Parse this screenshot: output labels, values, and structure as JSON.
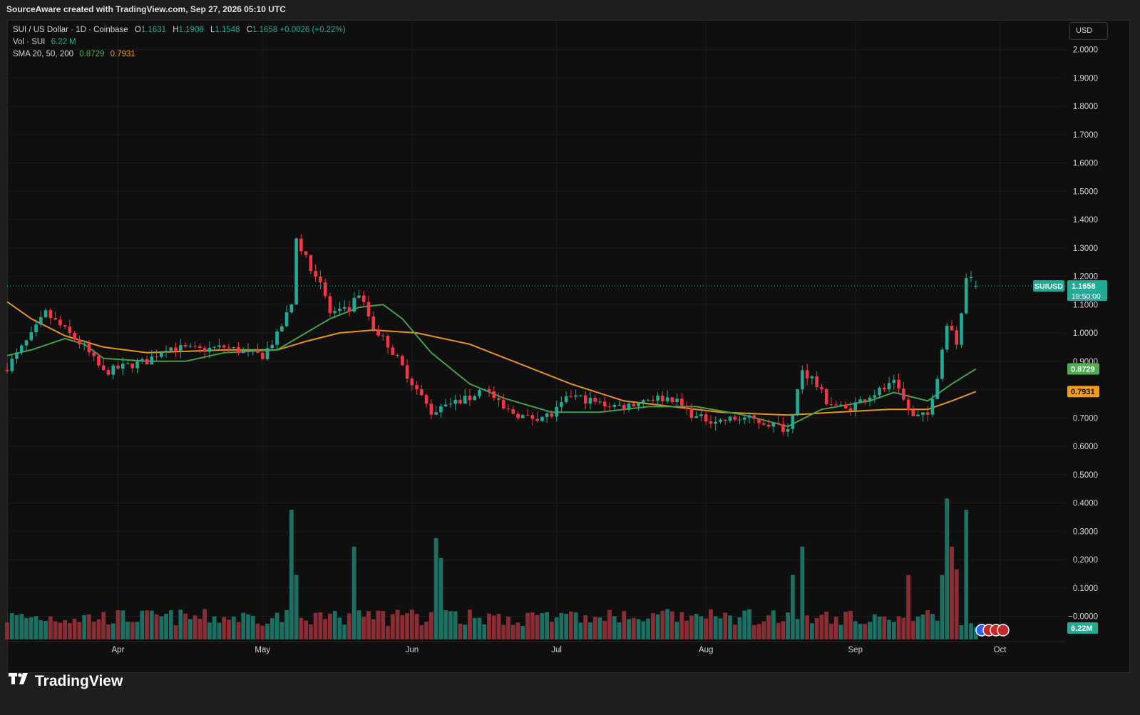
{
  "header": {
    "attribution": "SourceAware created with TradingView.com, Sep 27, 2026 05:10 UTC"
  },
  "legend": {
    "symbol_line": "SUI / US Dollar · 1D · Coinbase",
    "open_label": "O",
    "open": "1.1631",
    "high_label": "H",
    "high": "1.1908",
    "low_label": "L",
    "low": "1.1548",
    "close_label": "C",
    "close": "1.1658",
    "change": "+0.0026 (+0.22%)",
    "vol_label": "Vol · SUI",
    "vol_value": "6.22 M",
    "sma_label": "SMA 20, 50, 200",
    "sma20_value": "0.8729",
    "sma50_value": "0.7931"
  },
  "currency_button": "USD",
  "footer_brand": "TradingView",
  "colors": {
    "up": "#22ab94",
    "down": "#f23645",
    "up_volume": "#1c6f63",
    "down_volume": "#8a2e35",
    "sma20": "#43a047",
    "sma50": "#e6931f",
    "background": "#0f0f0f",
    "grid": "#1c1c1c"
  },
  "badges": {
    "symbol": "SUIUSD",
    "price": "1.1658",
    "countdown": "18:50:00",
    "sma20": "0.8729",
    "sma50": "0.7931",
    "volume": "6.22M"
  },
  "chart_data": {
    "type": "candlestick",
    "title": "SUI / US Dollar · 1D · Coinbase",
    "y_axis": {
      "ticks": [
        "2.0000",
        "1.9000",
        "1.8000",
        "1.7000",
        "1.6000",
        "1.5000",
        "1.4000",
        "1.3000",
        "1.2000",
        "1.1000",
        "1.0000",
        "0.9000",
        "0.8000",
        "0.7000",
        "0.6000",
        "0.5000",
        "0.4000",
        "0.3000",
        "0.2000",
        "0.1000",
        "−0.0000"
      ],
      "ylim": [
        -0.05,
        2.05
      ]
    },
    "x_axis": {
      "ticks": [
        "Apr",
        "May",
        "Jun",
        "Jul",
        "Aug",
        "Sep",
        "Oct"
      ]
    },
    "grid": true,
    "price_anchors": [
      [
        "2026-03-09",
        0.88
      ],
      [
        "2026-03-14",
        0.99
      ],
      [
        "2026-03-17",
        1.07
      ],
      [
        "2026-03-21",
        1.01
      ],
      [
        "2026-03-25",
        0.95
      ],
      [
        "2026-03-29",
        0.86
      ],
      [
        "2026-04-02",
        0.88
      ],
      [
        "2026-04-07",
        0.9
      ],
      [
        "2026-04-11",
        0.95
      ],
      [
        "2026-04-18",
        0.94
      ],
      [
        "2026-04-23",
        0.95
      ],
      [
        "2026-04-28",
        0.93
      ],
      [
        "2026-05-01",
        0.92
      ],
      [
        "2026-05-04",
        0.99
      ],
      [
        "2026-05-07",
        1.1
      ],
      [
        "2026-05-08",
        1.33
      ],
      [
        "2026-05-10",
        1.26
      ],
      [
        "2026-05-13",
        1.18
      ],
      [
        "2026-05-15",
        1.07
      ],
      [
        "2026-05-19",
        1.08
      ],
      [
        "2026-05-21",
        1.14
      ],
      [
        "2026-05-24",
        1.02
      ],
      [
        "2026-05-27",
        0.96
      ],
      [
        "2026-05-30",
        0.88
      ],
      [
        "2026-06-02",
        0.8
      ],
      [
        "2026-06-05",
        0.72
      ],
      [
        "2026-06-09",
        0.75
      ],
      [
        "2026-06-13",
        0.77
      ],
      [
        "2026-06-16",
        0.81
      ],
      [
        "2026-06-20",
        0.73
      ],
      [
        "2026-06-25",
        0.7
      ],
      [
        "2026-06-30",
        0.71
      ],
      [
        "2026-07-04",
        0.78
      ],
      [
        "2026-07-10",
        0.75
      ],
      [
        "2026-07-15",
        0.74
      ],
      [
        "2026-07-20",
        0.77
      ],
      [
        "2026-07-25",
        0.77
      ],
      [
        "2026-07-30",
        0.7
      ],
      [
        "2026-08-04",
        0.69
      ],
      [
        "2026-08-09",
        0.7
      ],
      [
        "2026-08-14",
        0.68
      ],
      [
        "2026-08-18",
        0.66
      ],
      [
        "2026-08-21",
        0.86
      ],
      [
        "2026-08-23",
        0.84
      ],
      [
        "2026-08-26",
        0.76
      ],
      [
        "2026-08-30",
        0.73
      ],
      [
        "2026-09-04",
        0.78
      ],
      [
        "2026-09-09",
        0.82
      ],
      [
        "2026-09-13",
        0.7
      ],
      [
        "2026-09-16",
        0.71
      ],
      [
        "2026-09-18",
        0.85
      ],
      [
        "2026-09-20",
        1.04
      ],
      [
        "2026-09-22",
        0.96
      ],
      [
        "2026-09-24",
        1.2
      ],
      [
        "2026-09-26",
        1.166
      ]
    ],
    "sma20_anchors": [
      [
        "2026-03-09",
        0.92
      ],
      [
        "2026-03-14",
        0.94
      ],
      [
        "2026-03-21",
        0.98
      ],
      [
        "2026-03-25",
        0.96
      ],
      [
        "2026-03-29",
        0.91
      ],
      [
        "2026-04-07",
        0.9
      ],
      [
        "2026-04-15",
        0.9
      ],
      [
        "2026-04-23",
        0.93
      ],
      [
        "2026-05-04",
        0.94
      ],
      [
        "2026-05-10",
        1.0
      ],
      [
        "2026-05-15",
        1.05
      ],
      [
        "2026-05-21",
        1.09
      ],
      [
        "2026-05-26",
        1.1
      ],
      [
        "2026-05-30",
        1.05
      ],
      [
        "2026-06-05",
        0.93
      ],
      [
        "2026-06-13",
        0.82
      ],
      [
        "2026-06-20",
        0.77
      ],
      [
        "2026-06-30",
        0.72
      ],
      [
        "2026-07-10",
        0.72
      ],
      [
        "2026-07-20",
        0.74
      ],
      [
        "2026-07-30",
        0.74
      ],
      [
        "2026-08-09",
        0.71
      ],
      [
        "2026-08-18",
        0.67
      ],
      [
        "2026-08-25",
        0.73
      ],
      [
        "2026-09-04",
        0.76
      ],
      [
        "2026-09-09",
        0.79
      ],
      [
        "2026-09-16",
        0.76
      ],
      [
        "2026-09-21",
        0.82
      ],
      [
        "2026-09-26",
        0.873
      ]
    ],
    "sma50_anchors": [
      [
        "2026-03-09",
        1.11
      ],
      [
        "2026-03-14",
        1.05
      ],
      [
        "2026-03-21",
        0.99
      ],
      [
        "2026-03-29",
        0.95
      ],
      [
        "2026-04-07",
        0.93
      ],
      [
        "2026-04-23",
        0.94
      ],
      [
        "2026-05-04",
        0.94
      ],
      [
        "2026-05-10",
        0.97
      ],
      [
        "2026-05-17",
        1.0
      ],
      [
        "2026-05-24",
        1.01
      ],
      [
        "2026-06-02",
        1.0
      ],
      [
        "2026-06-13",
        0.96
      ],
      [
        "2026-06-25",
        0.88
      ],
      [
        "2026-07-04",
        0.82
      ],
      [
        "2026-07-15",
        0.76
      ],
      [
        "2026-07-25",
        0.74
      ],
      [
        "2026-08-04",
        0.72
      ],
      [
        "2026-08-18",
        0.71
      ],
      [
        "2026-08-28",
        0.72
      ],
      [
        "2026-09-08",
        0.73
      ],
      [
        "2026-09-16",
        0.73
      ],
      [
        "2026-09-21",
        0.76
      ],
      [
        "2026-09-26",
        0.793
      ]
    ],
    "volume_anchors": [
      [
        "2026-05-07",
        0.43
      ],
      [
        "2026-05-08",
        0.2
      ],
      [
        "2026-05-20",
        0.3
      ],
      [
        "2026-06-06",
        0.33
      ],
      [
        "2026-06-07",
        0.26
      ],
      [
        "2026-08-19",
        0.2
      ],
      [
        "2026-08-21",
        0.3
      ],
      [
        "2026-09-12",
        0.2
      ],
      [
        "2026-09-19",
        0.2
      ],
      [
        "2026-09-20",
        0.47
      ],
      [
        "2026-09-21",
        0.3
      ],
      [
        "2026-09-22",
        0.22
      ],
      [
        "2026-09-24",
        0.43
      ],
      [
        "2026-09-26",
        0.016
      ]
    ]
  }
}
